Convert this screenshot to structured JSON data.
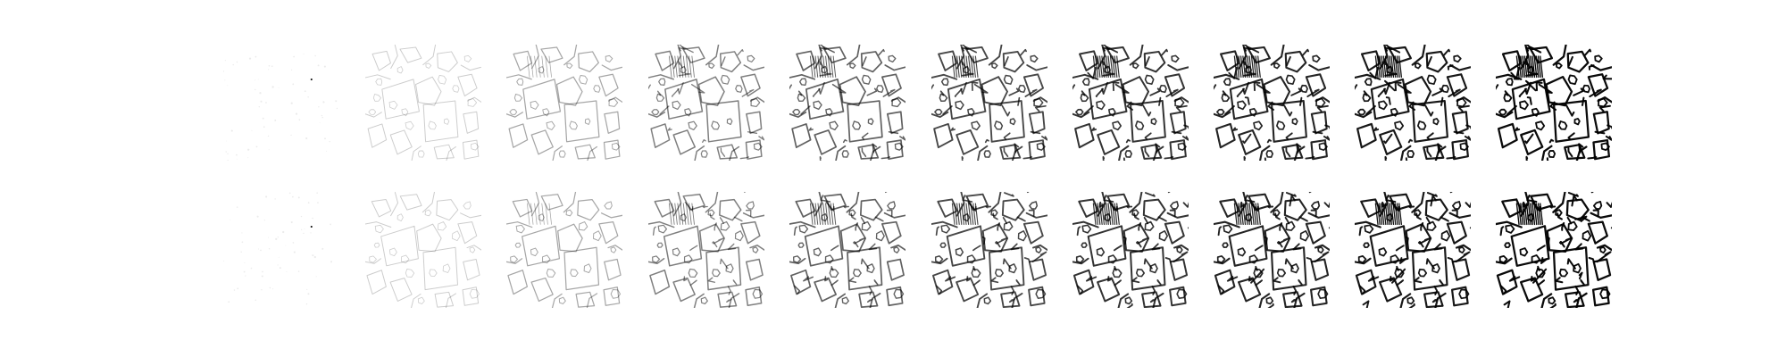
{
  "figure": {
    "rows": [
      {
        "name": "row-1",
        "panels": [
          {
            "index": 1,
            "darkness": 0.0
          },
          {
            "index": 2,
            "darkness": 0.2
          },
          {
            "index": 3,
            "darkness": 0.35
          },
          {
            "index": 4,
            "darkness": 0.5
          },
          {
            "index": 5,
            "darkness": 0.62
          },
          {
            "index": 6,
            "darkness": 0.72
          },
          {
            "index": 7,
            "darkness": 0.8
          },
          {
            "index": 8,
            "darkness": 0.86
          },
          {
            "index": 9,
            "darkness": 0.91
          },
          {
            "index": 10,
            "darkness": 0.96
          }
        ]
      },
      {
        "name": "row-2",
        "panels": [
          {
            "index": 1,
            "darkness": 0.06
          },
          {
            "index": 2,
            "darkness": 0.2
          },
          {
            "index": 3,
            "darkness": 0.35
          },
          {
            "index": 4,
            "darkness": 0.5
          },
          {
            "index": 5,
            "darkness": 0.62
          },
          {
            "index": 6,
            "darkness": 0.72
          },
          {
            "index": 7,
            "darkness": 0.8
          },
          {
            "index": 8,
            "darkness": 0.86
          },
          {
            "index": 9,
            "darkness": 0.91
          },
          {
            "index": 10,
            "darkness": 0.96
          }
        ]
      }
    ],
    "colors": {
      "background": "#ffffff",
      "ink": "#000000"
    }
  }
}
